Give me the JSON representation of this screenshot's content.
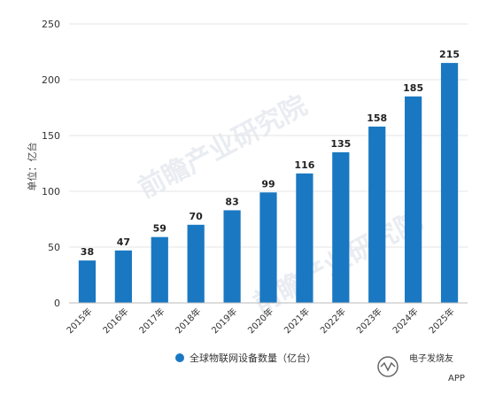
{
  "chart_data": {
    "type": "bar",
    "title": "",
    "xlabel": "",
    "ylabel": "单位：亿台",
    "categories": [
      "2015年",
      "2016年",
      "2017年",
      "2018年",
      "2019年",
      "2020年",
      "2021年",
      "2022年",
      "2023年",
      "2024年",
      "2025年"
    ],
    "series": [
      {
        "name": "全球物联网设备数量（亿台）",
        "values": [
          38,
          47,
          59,
          70,
          83,
          99,
          116,
          135,
          158,
          185,
          215
        ],
        "color": "#1a78c2"
      }
    ],
    "ylim": [
      0,
      250
    ],
    "yticks": [
      0,
      50,
      100,
      150,
      200,
      250
    ],
    "grid": true,
    "legend_position": "bottom-center",
    "data_labels": true
  },
  "watermark": {
    "background_text": "前瞻产业研究院",
    "corner_text": "电子发烧友",
    "corner_suffix": "APP"
  },
  "colors": {
    "bar": "#1a78c2",
    "grid": "#e6e6e6",
    "axis": "#bbbbbb"
  }
}
